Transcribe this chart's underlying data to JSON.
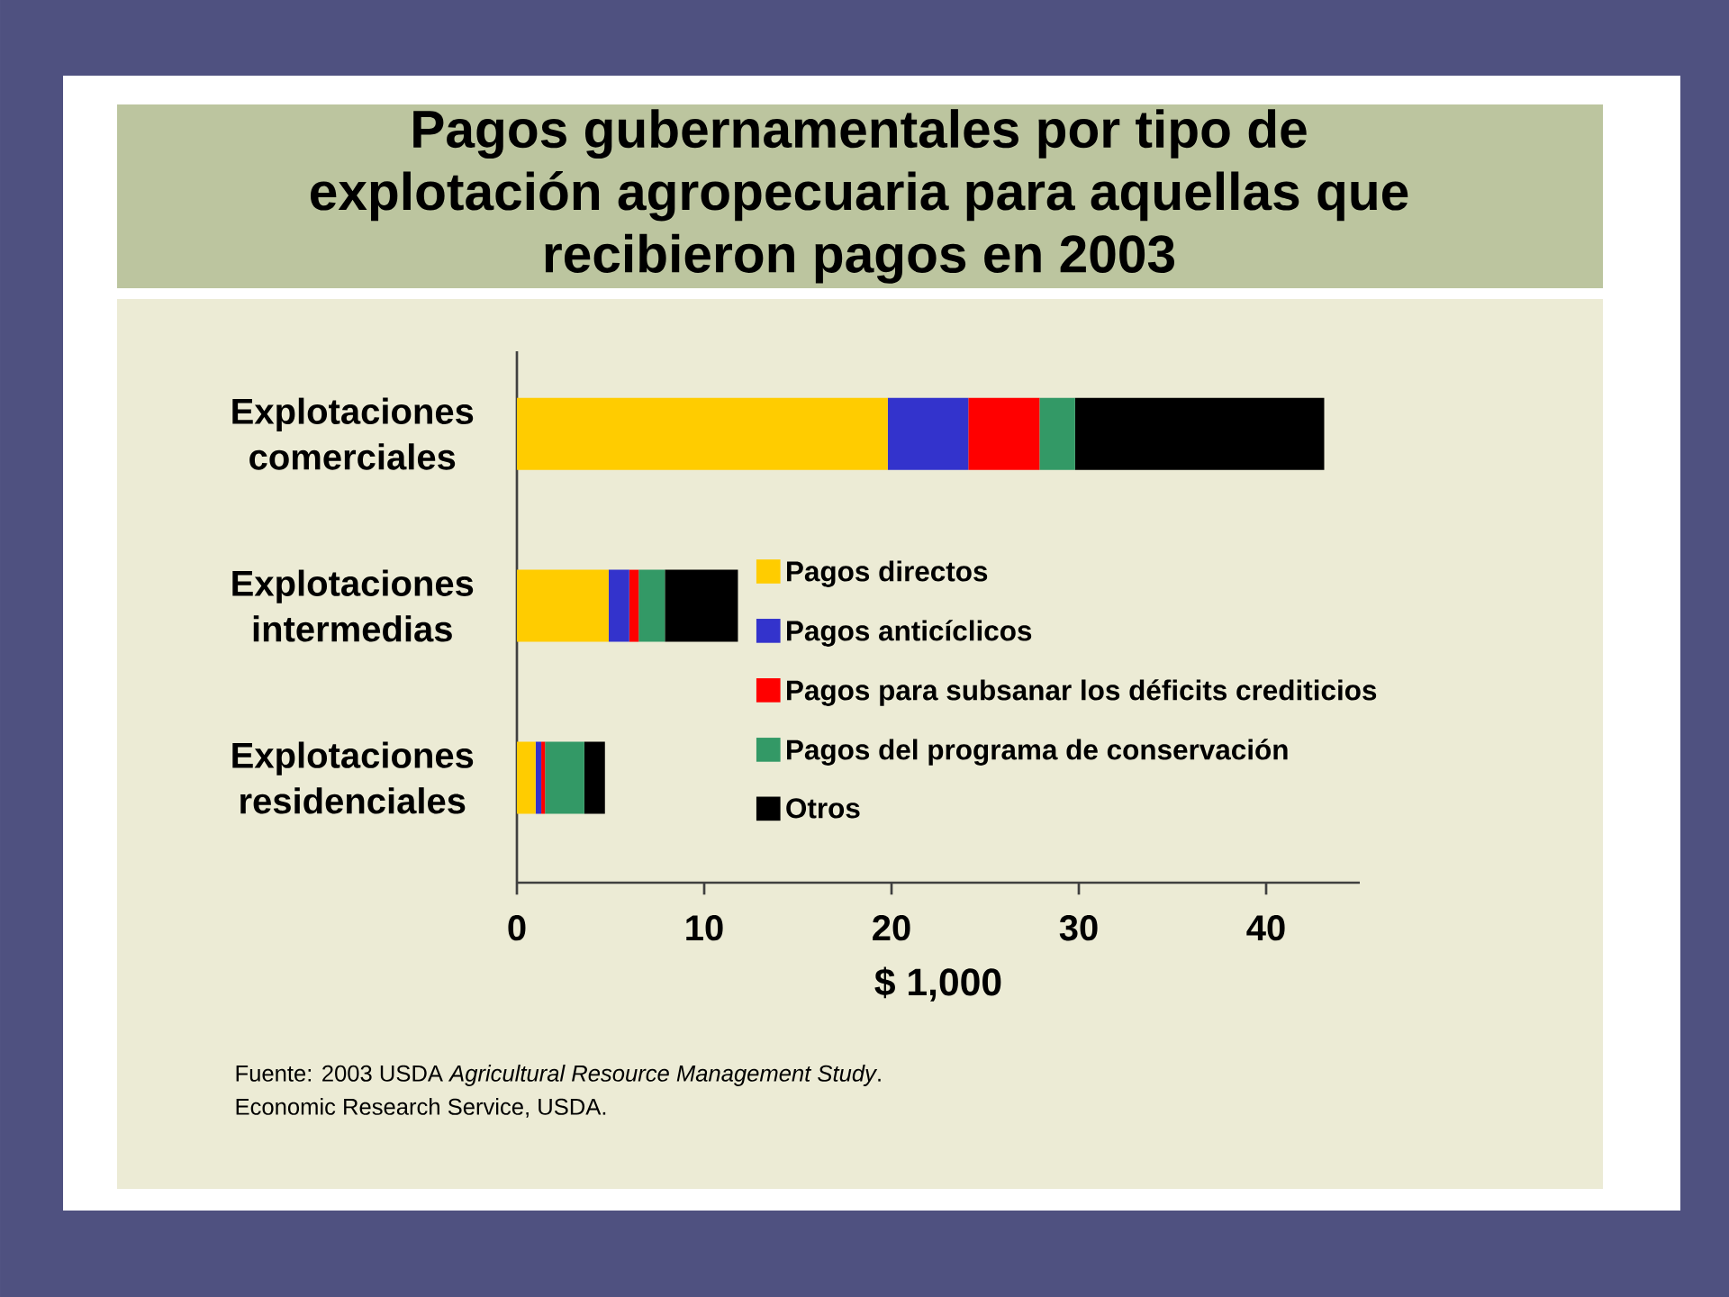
{
  "chart_data": {
    "type": "bar",
    "orientation": "horizontal",
    "stacked": true,
    "title": "Pagos gubernamentales por tipo de explotación agropecuaria para aquellas que recibieron pagos en 2003",
    "xlabel": "$ 1,000",
    "categories": [
      "Explotaciones comerciales",
      "Explotaciones intermedias",
      "Explotaciones residenciales"
    ],
    "series": [
      {
        "name": "Pagos directos",
        "color": "#ffcc00",
        "values": [
          19.8,
          4.9,
          1.0
        ]
      },
      {
        "name": "Pagos anticíclicos",
        "color": "#3333cc",
        "values": [
          4.3,
          1.1,
          0.3
        ]
      },
      {
        "name": "Pagos para subsanar los déficits crediticios",
        "color": "#ff0000",
        "values": [
          3.8,
          0.5,
          0.2
        ]
      },
      {
        "name": "Pagos del programa de conservación",
        "color": "#339966",
        "values": [
          1.9,
          1.4,
          2.1
        ]
      },
      {
        "name": "Otros",
        "color": "#000000",
        "values": [
          13.3,
          3.9,
          1.1
        ]
      }
    ],
    "xlim": [
      0,
      45
    ],
    "xticks": [
      0,
      10,
      20,
      30,
      40
    ],
    "legend": "right",
    "annotations": [
      "Fuente: 2003 USDA *Agricultural Resource Management Study*.",
      "Economic Research Service, USDA."
    ]
  }
}
